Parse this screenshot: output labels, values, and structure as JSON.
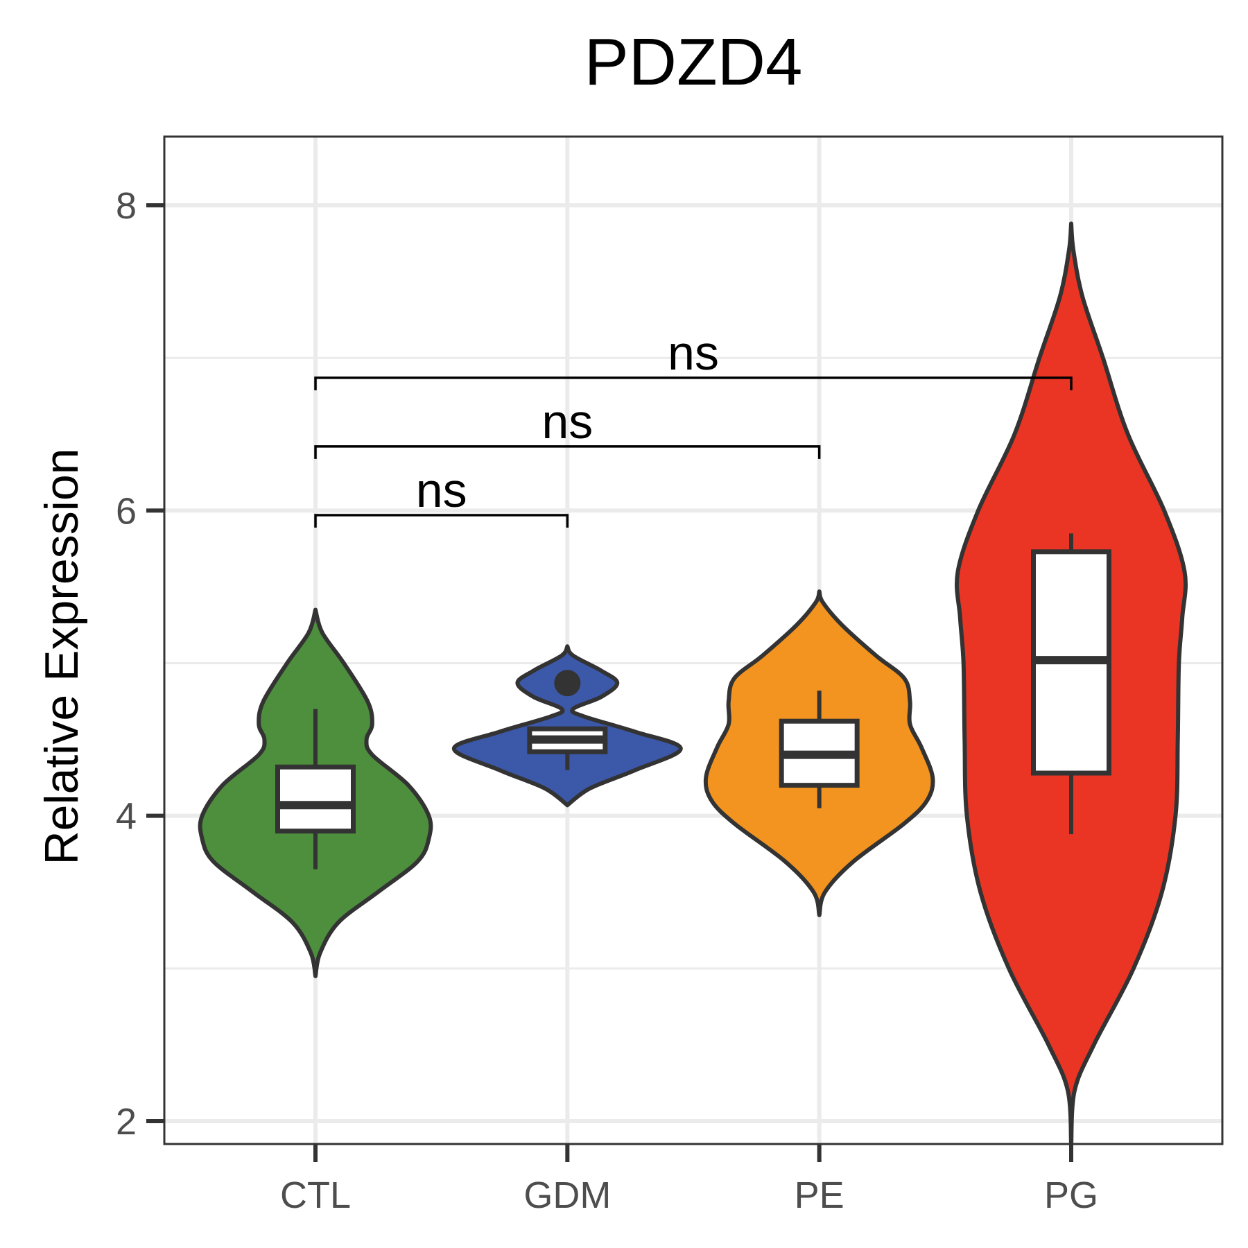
{
  "chart_data": {
    "type": "violin",
    "title": "PDZD4",
    "xlabel": "",
    "ylabel": "Relative Expression",
    "ylim": [
      1.85,
      8.45
    ],
    "yticks": [
      2,
      4,
      6,
      8
    ],
    "grid": true,
    "legend": "none",
    "categories": [
      "CTL",
      "GDM",
      "PE",
      "PG"
    ],
    "groups": [
      {
        "name": "CTL",
        "color": "#4e8f3e",
        "box": {
          "lower_whisker": 3.65,
          "q1": 3.9,
          "median": 4.07,
          "q3": 4.32,
          "upper_whisker": 4.7
        },
        "outliers": [],
        "density": [
          [
            2.95,
            0
          ],
          [
            3.1,
            0.04
          ],
          [
            3.3,
            0.2
          ],
          [
            3.5,
            0.55
          ],
          [
            3.7,
            0.9
          ],
          [
            3.85,
            1.0
          ],
          [
            4.0,
            1.0
          ],
          [
            4.2,
            0.82
          ],
          [
            4.4,
            0.5
          ],
          [
            4.5,
            0.45
          ],
          [
            4.6,
            0.5
          ],
          [
            4.75,
            0.46
          ],
          [
            5.0,
            0.25
          ],
          [
            5.2,
            0.06
          ],
          [
            5.35,
            0
          ]
        ]
      },
      {
        "name": "GDM",
        "color": "#3c58a8",
        "box": {
          "lower_whisker": 4.3,
          "q1": 4.42,
          "median": 4.5,
          "q3": 4.57,
          "upper_whisker": 4.57
        },
        "outliers": [
          4.87
        ],
        "density": [
          [
            4.07,
            0
          ],
          [
            4.18,
            0.2
          ],
          [
            4.3,
            0.6
          ],
          [
            4.44,
            1.0
          ],
          [
            4.55,
            0.6
          ],
          [
            4.65,
            0.15
          ],
          [
            4.7,
            0.05
          ],
          [
            4.78,
            0.3
          ],
          [
            4.87,
            0.44
          ],
          [
            4.95,
            0.3
          ],
          [
            5.05,
            0.05
          ],
          [
            5.11,
            0
          ]
        ]
      },
      {
        "name": "PE",
        "color": "#f39420",
        "box": {
          "lower_whisker": 4.05,
          "q1": 4.2,
          "median": 4.4,
          "q3": 4.62,
          "upper_whisker": 4.82
        },
        "outliers": [],
        "density": [
          [
            3.35,
            0
          ],
          [
            3.5,
            0.05
          ],
          [
            3.7,
            0.3
          ],
          [
            3.95,
            0.75
          ],
          [
            4.1,
            0.95
          ],
          [
            4.25,
            1.0
          ],
          [
            4.45,
            0.9
          ],
          [
            4.6,
            0.8
          ],
          [
            4.75,
            0.8
          ],
          [
            4.9,
            0.75
          ],
          [
            5.05,
            0.5
          ],
          [
            5.25,
            0.2
          ],
          [
            5.4,
            0.03
          ],
          [
            5.47,
            0
          ]
        ]
      },
      {
        "name": "PG",
        "color": "#ea3525",
        "box": {
          "lower_whisker": 3.88,
          "q1": 4.28,
          "median": 5.02,
          "q3": 5.73,
          "upper_whisker": 5.85
        },
        "outliers": [],
        "density": [
          [
            1.85,
            0
          ],
          [
            2.2,
            0.03
          ],
          [
            2.5,
            0.2
          ],
          [
            3.0,
            0.55
          ],
          [
            3.5,
            0.8
          ],
          [
            4.0,
            0.92
          ],
          [
            4.5,
            0.94
          ],
          [
            5.0,
            0.95
          ],
          [
            5.3,
            0.98
          ],
          [
            5.6,
            1.0
          ],
          [
            6.0,
            0.82
          ],
          [
            6.5,
            0.5
          ],
          [
            7.0,
            0.28
          ],
          [
            7.4,
            0.1
          ],
          [
            7.7,
            0.02
          ],
          [
            7.88,
            0
          ]
        ]
      }
    ],
    "comparisons": [
      {
        "from": "CTL",
        "to": "GDM",
        "y": 5.97,
        "label": "ns"
      },
      {
        "from": "CTL",
        "to": "PE",
        "y": 6.42,
        "label": "ns"
      },
      {
        "from": "CTL",
        "to": "PG",
        "y": 6.87,
        "label": "ns"
      }
    ]
  }
}
